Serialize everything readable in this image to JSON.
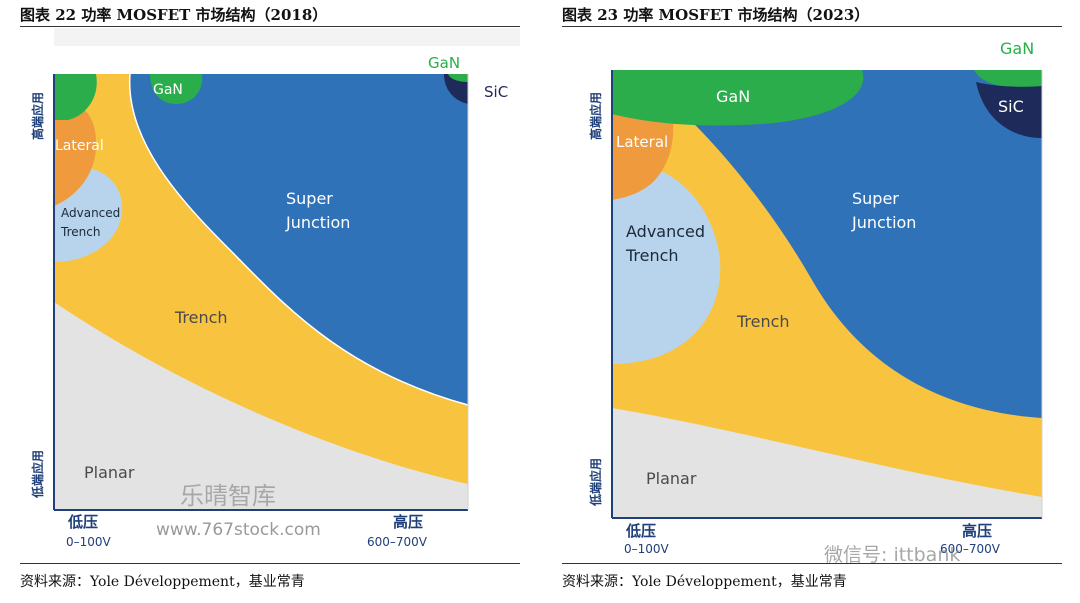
{
  "left": {
    "title": "图表 22  功率 MOSFET 市场结构（2018）",
    "source": "资料来源：Yole Développement，基业常青",
    "y_high": "高端应用",
    "y_low": "低端应用",
    "x_low": "低压",
    "x_low_range": "0–100V",
    "x_high": "高压",
    "x_high_range": "600–700V",
    "regions": {
      "gan": "GaN",
      "sic": "SiC",
      "lateral": "Lateral",
      "advanced_1": "Advanced",
      "advanced_2": "Trench",
      "super_1": "Super",
      "super_2": "Junction",
      "trench": "Trench",
      "planar": "Planar"
    },
    "watermark_1": "乐晴智库",
    "watermark_2": "www.767stock.com"
  },
  "right": {
    "title": "图表 23  功率 MOSFET 市场结构（2023）",
    "source": "资料来源：Yole Développement，基业常青",
    "y_high": "高端应用",
    "y_low": "低端应用",
    "x_low": "低压",
    "x_low_range": "0–100V",
    "x_high": "高压",
    "x_high_range": "600–700V",
    "regions": {
      "gan_top": "GaN",
      "gan": "GaN",
      "sic": "SiC",
      "lateral": "Lateral",
      "advanced_1": "Advanced",
      "advanced_2": "Trench",
      "super_1": "Super",
      "super_2": "Junction",
      "trench": "Trench",
      "planar": "Planar"
    },
    "watermark": "微信号: ittbank"
  },
  "colors": {
    "super_junction": "#2f72b8",
    "trench": "#f8c440",
    "planar": "#e3e3e3",
    "advanced_trench": "#b8d3ec",
    "lateral": "#ef9a3c",
    "gan": "#2aad4a",
    "sic": "#1e2a5a"
  }
}
